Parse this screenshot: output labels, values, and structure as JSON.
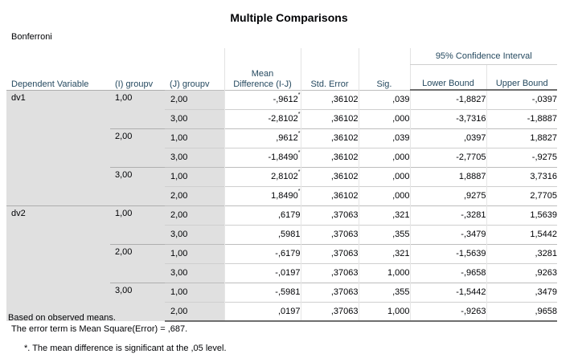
{
  "title": "Multiple Comparisons",
  "subtitle": "Bonferroni",
  "headers": {
    "dependent_variable": "Dependent Variable",
    "i_group": "(I) groupv",
    "j_group": "(J) groupv",
    "mean_difference": "Mean Difference (I-J)",
    "std_error": "Std. Error",
    "sig": "Sig.",
    "ci_group": "95% Confidence Interval",
    "lower_bound": "Lower Bound",
    "upper_bound": "Upper Bound"
  },
  "significance_marker": "*",
  "variables": [
    {
      "name": "dv1",
      "groups": [
        {
          "i": "1,00",
          "rows": [
            {
              "j": "2,00",
              "mean_diff": "-,9612",
              "significant": true,
              "se": ",36102",
              "sig": ",039",
              "lower": "-1,8827",
              "upper": "-,0397"
            },
            {
              "j": "3,00",
              "mean_diff": "-2,8102",
              "significant": true,
              "se": ",36102",
              "sig": ",000",
              "lower": "-3,7316",
              "upper": "-1,8887"
            }
          ]
        },
        {
          "i": "2,00",
          "rows": [
            {
              "j": "1,00",
              "mean_diff": ",9612",
              "significant": true,
              "se": ",36102",
              "sig": ",039",
              "lower": ",0397",
              "upper": "1,8827"
            },
            {
              "j": "3,00",
              "mean_diff": "-1,8490",
              "significant": true,
              "se": ",36102",
              "sig": ",000",
              "lower": "-2,7705",
              "upper": "-,9275"
            }
          ]
        },
        {
          "i": "3,00",
          "rows": [
            {
              "j": "1,00",
              "mean_diff": "2,8102",
              "significant": true,
              "se": ",36102",
              "sig": ",000",
              "lower": "1,8887",
              "upper": "3,7316"
            },
            {
              "j": "2,00",
              "mean_diff": "1,8490",
              "significant": true,
              "se": ",36102",
              "sig": ",000",
              "lower": ",9275",
              "upper": "2,7705"
            }
          ]
        }
      ]
    },
    {
      "name": "dv2",
      "groups": [
        {
          "i": "1,00",
          "rows": [
            {
              "j": "2,00",
              "mean_diff": ",6179",
              "significant": false,
              "se": ",37063",
              "sig": ",321",
              "lower": "-,3281",
              "upper": "1,5639"
            },
            {
              "j": "3,00",
              "mean_diff": ",5981",
              "significant": false,
              "se": ",37063",
              "sig": ",355",
              "lower": "-,3479",
              "upper": "1,5442"
            }
          ]
        },
        {
          "i": "2,00",
          "rows": [
            {
              "j": "1,00",
              "mean_diff": "-,6179",
              "significant": false,
              "se": ",37063",
              "sig": ",321",
              "lower": "-1,5639",
              "upper": ",3281"
            },
            {
              "j": "3,00",
              "mean_diff": "-,0197",
              "significant": false,
              "se": ",37063",
              "sig": "1,000",
              "lower": "-,9658",
              "upper": ",9263"
            }
          ]
        },
        {
          "i": "3,00",
          "rows": [
            {
              "j": "1,00",
              "mean_diff": "-,5981",
              "significant": false,
              "se": ",37063",
              "sig": ",355",
              "lower": "-1,5442",
              "upper": ",3479"
            },
            {
              "j": "2,00",
              "mean_diff": ",0197",
              "significant": false,
              "se": ",37063",
              "sig": "1,000",
              "lower": "-,9263",
              "upper": ",9658"
            }
          ]
        }
      ]
    }
  ],
  "footnotes": {
    "line1": "Based on observed means.",
    "line2": "The error term is Mean Square(Error) = ,687.",
    "line3": "*. The mean difference is significant at the ,05 level."
  }
}
